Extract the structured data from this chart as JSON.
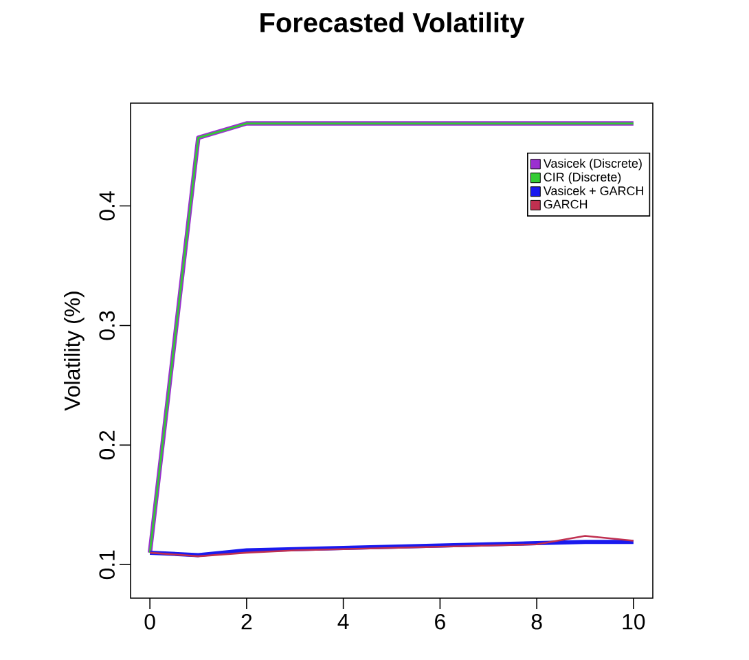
{
  "chart_data": {
    "type": "line",
    "title": "Forecasted Volatility",
    "ylabel": "Volatility (%)",
    "x": [
      0,
      1,
      2,
      3,
      4,
      5,
      6,
      7,
      8,
      9,
      10
    ],
    "series": [
      {
        "name": "Vasicek (Discrete)",
        "color": "#9b30d0",
        "values": [
          0.11,
          0.457,
          0.469,
          0.469,
          0.469,
          0.469,
          0.469,
          0.469,
          0.469,
          0.469,
          0.469
        ]
      },
      {
        "name": "CIR (Discrete)",
        "color": "#33cc33",
        "values": [
          0.11,
          0.457,
          0.469,
          0.469,
          0.469,
          0.469,
          0.469,
          0.469,
          0.469,
          0.469,
          0.469
        ]
      },
      {
        "name": "Vasicek + GARCH",
        "color": "#1a1aee",
        "values": [
          0.11,
          0.108,
          0.112,
          0.113,
          0.114,
          0.115,
          0.116,
          0.117,
          0.118,
          0.119,
          0.119
        ]
      },
      {
        "name": "GARCH",
        "color": "#c03050",
        "values": [
          0.11,
          0.107,
          0.11,
          0.112,
          0.113,
          0.114,
          0.115,
          0.116,
          0.117,
          0.124,
          0.12
        ]
      }
    ],
    "xlim": [
      -0.4,
      10.4
    ],
    "ylim": [
      0.072,
      0.486
    ],
    "xticks": [
      0,
      2,
      4,
      6,
      8,
      10
    ],
    "yticks": [
      0.1,
      0.2,
      0.3,
      0.4
    ],
    "legend": "top right",
    "marker": "none",
    "line_style": "solid",
    "grid": false
  }
}
